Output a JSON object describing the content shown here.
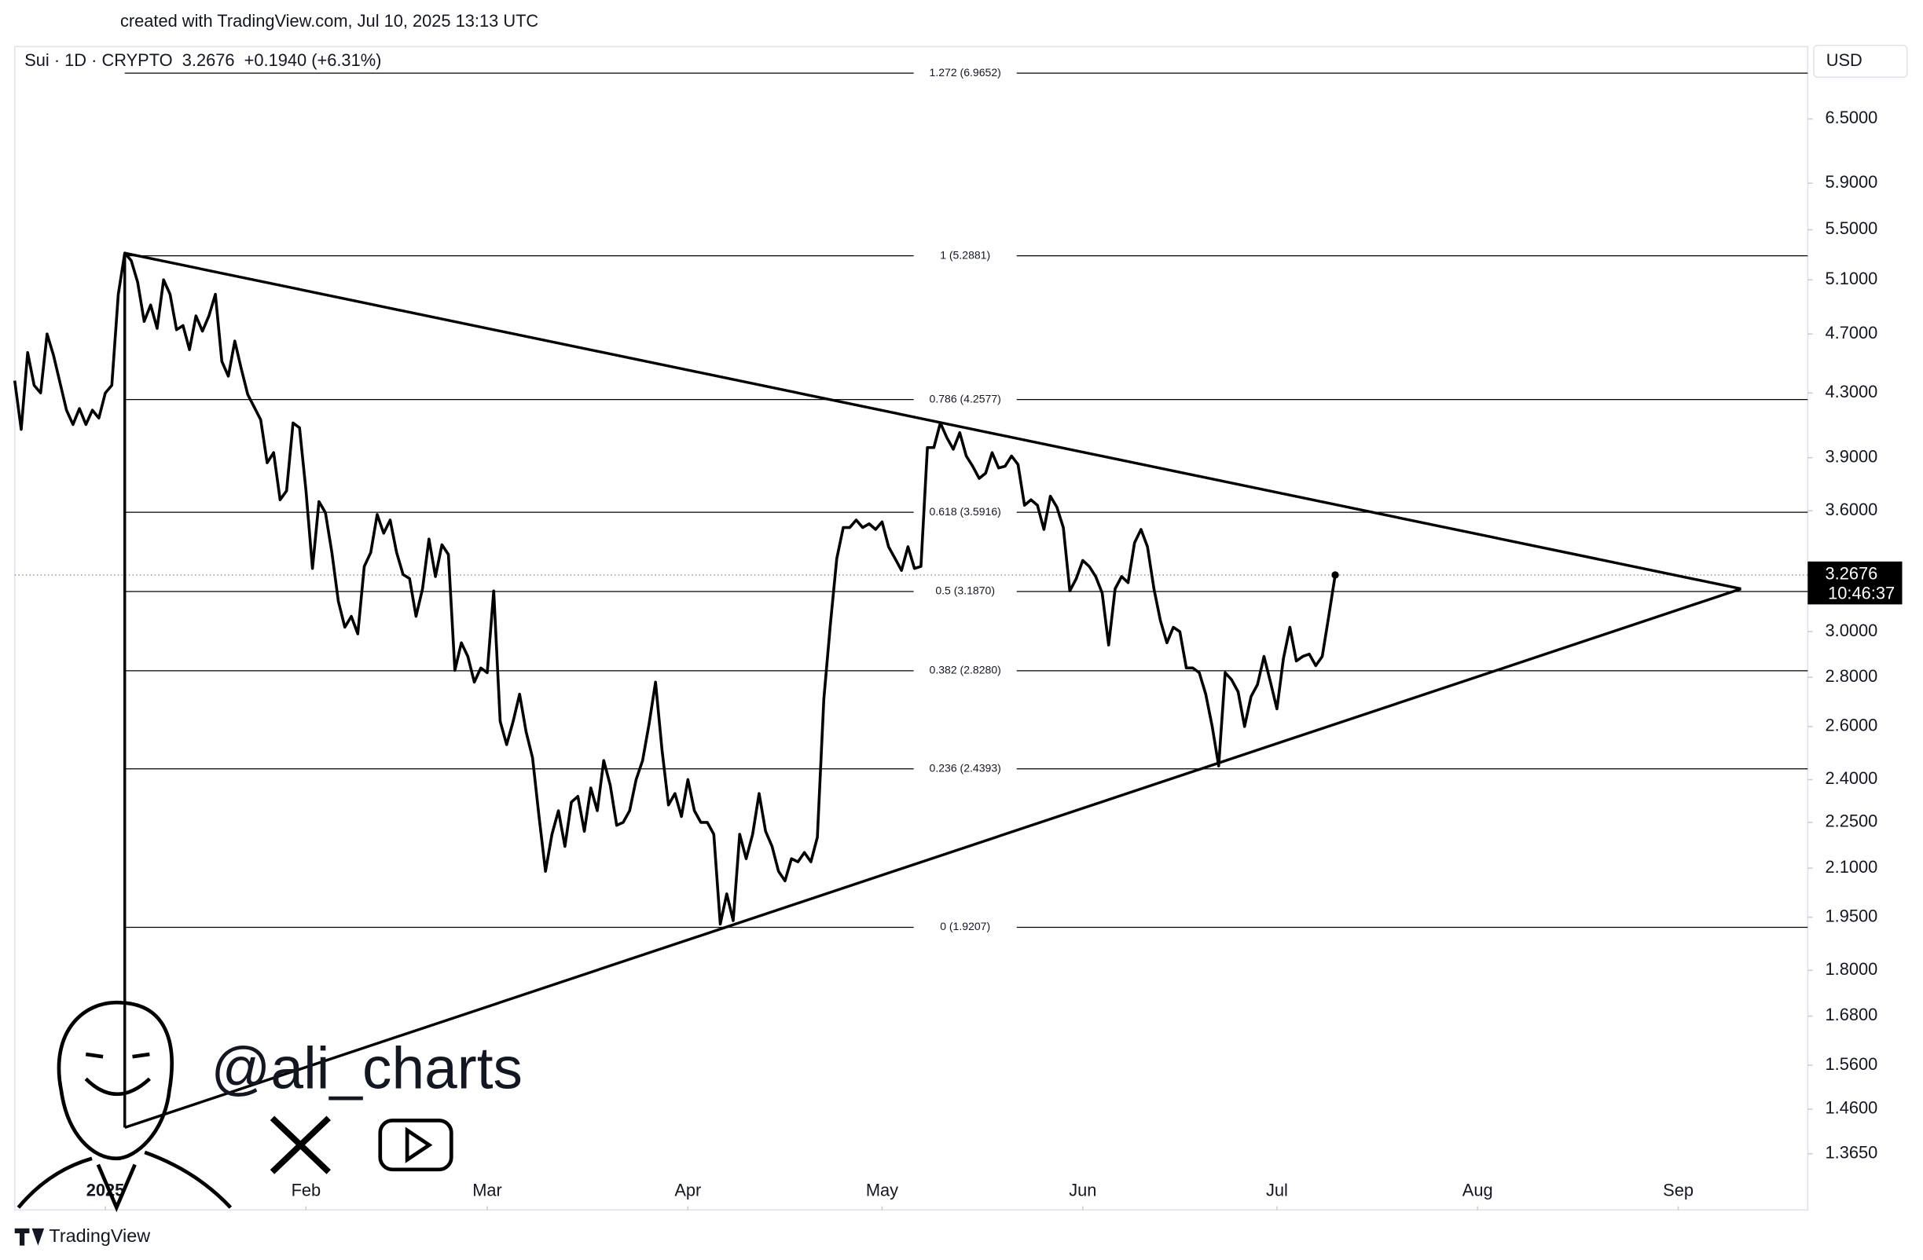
{
  "chart_data": {
    "type": "line",
    "title": "Sui · 1D · CRYPTO  3.2676  +0.1940 (+6.31%)",
    "credit": "created with TradingView.com, Jul 10, 2025 13:13 UTC",
    "currency": "USD",
    "watermark": "@ali_charts",
    "brand": "TradingView",
    "price": 3.2676,
    "countdown": "10:46:37",
    "log_scale": true,
    "color": "#000000",
    "xlim": [
      -14,
      263
    ],
    "ylim": [
      1.254,
      7.25
    ],
    "xticks": [
      {
        "value": 0,
        "label": "2025"
      },
      {
        "value": 31,
        "label": "Feb"
      },
      {
        "value": 59,
        "label": "Mar"
      },
      {
        "value": 90,
        "label": "Apr"
      },
      {
        "value": 120,
        "label": "May"
      },
      {
        "value": 151,
        "label": "Jun"
      },
      {
        "value": 181,
        "label": "Jul"
      },
      {
        "value": 212,
        "label": "Aug"
      },
      {
        "value": 243,
        "label": "Sep"
      }
    ],
    "yticks": [
      {
        "value": 6.5,
        "label": "6.5000"
      },
      {
        "value": 5.9,
        "label": "5.9000"
      },
      {
        "value": 5.5,
        "label": "5.5000"
      },
      {
        "value": 5.1,
        "label": "5.1000"
      },
      {
        "value": 4.7,
        "label": "4.7000"
      },
      {
        "value": 4.3,
        "label": "4.3000"
      },
      {
        "value": 3.9,
        "label": "3.9000"
      },
      {
        "value": 3.6,
        "label": "3.6000"
      },
      {
        "value": 3,
        "label": "3.0000"
      },
      {
        "value": 2.8,
        "label": "2.8000"
      },
      {
        "value": 2.6,
        "label": "2.6000"
      },
      {
        "value": 2.4,
        "label": "2.4000"
      },
      {
        "value": 2.25,
        "label": "2.2500"
      },
      {
        "value": 2.1,
        "label": "2.1000"
      },
      {
        "value": 1.95,
        "label": "1.9500"
      },
      {
        "value": 1.8,
        "label": "1.8000"
      },
      {
        "value": 1.68,
        "label": "1.6800"
      },
      {
        "value": 1.56,
        "label": "1.5600"
      },
      {
        "value": 1.46,
        "label": "1.4600"
      },
      {
        "value": 1.365,
        "label": "1.3650"
      }
    ],
    "fib_levels": [
      {
        "value": 6.9652,
        "label": "1.272 (6.9652)"
      },
      {
        "value": 5.2881,
        "label": "1 (5.2881)"
      },
      {
        "value": 4.2577,
        "label": "0.786 (4.2577)"
      },
      {
        "value": 3.5916,
        "label": "0.618 (3.5916)"
      },
      {
        "value": 3.187,
        "label": "0.5 (3.1870)"
      },
      {
        "value": 2.828,
        "label": "0.382 (2.8280)"
      },
      {
        "value": 2.4393,
        "label": "0.236 (2.4393)"
      },
      {
        "value": 1.9207,
        "label": "0 (1.9207)"
      }
    ],
    "trendlines": [
      {
        "x": [
          3,
          252.7
        ],
        "y": [
          5.31,
          3.2
        ]
      },
      {
        "x": [
          3,
          252.7
        ],
        "y": [
          1.42,
          3.2
        ]
      },
      {
        "x": [
          3,
          3
        ],
        "y": [
          5.31,
          1.42
        ]
      }
    ],
    "x": [
      -14,
      -13,
      -12,
      -11,
      -10,
      -9,
      -8,
      -6,
      -5,
      -4,
      -3,
      -2,
      -1,
      0,
      1,
      2,
      3,
      4,
      5,
      6,
      7,
      8,
      9,
      10,
      11,
      12,
      13,
      14,
      15,
      16,
      17,
      18,
      19,
      20,
      21,
      22,
      24,
      25,
      26,
      27,
      28,
      29,
      30,
      31,
      32,
      33,
      34,
      35,
      36,
      37,
      38,
      39,
      40,
      41,
      42,
      43,
      44,
      45,
      46,
      47,
      48,
      49,
      50,
      51,
      52,
      53,
      54,
      55,
      56,
      57,
      58,
      59,
      60,
      61,
      62,
      63,
      64,
      65,
      66,
      67,
      68,
      69,
      70,
      71,
      72,
      73,
      74,
      75,
      76,
      77,
      78,
      79,
      80,
      81,
      82,
      83,
      84,
      85,
      86,
      87,
      88,
      89,
      90,
      91,
      92,
      93,
      94,
      95,
      96,
      97,
      98,
      99,
      100,
      101,
      102,
      103,
      104,
      105,
      106,
      107,
      108,
      109,
      110,
      111,
      112,
      113,
      114,
      115,
      116,
      117,
      118,
      119,
      120,
      121,
      122,
      123,
      124,
      125,
      126,
      127,
      128,
      129,
      130,
      131,
      132,
      133,
      134,
      135,
      136,
      137,
      138,
      139,
      140,
      141,
      142,
      143,
      144,
      145,
      146,
      147,
      148,
      149,
      150,
      151,
      152,
      153,
      154,
      155,
      156,
      157,
      158,
      159,
      160,
      161,
      162,
      163,
      164,
      165,
      166,
      167,
      168,
      169,
      170,
      171,
      172,
      173,
      174,
      175,
      176,
      177,
      178,
      179,
      180,
      181,
      182,
      183,
      184,
      185,
      186,
      187,
      188,
      189,
      190
    ],
    "values": [
      4.38,
      4.07,
      4.57,
      4.35,
      4.3,
      4.7,
      4.55,
      4.19,
      4.1,
      4.2,
      4.1,
      4.19,
      4.14,
      4.3,
      4.35,
      4.99,
      5.31,
      5.25,
      5.08,
      4.79,
      4.91,
      4.74,
      5.1,
      4.99,
      4.73,
      4.76,
      4.59,
      4.83,
      4.72,
      4.83,
      4.99,
      4.51,
      4.41,
      4.65,
      4.46,
      4.29,
      4.13,
      3.87,
      3.93,
      3.66,
      3.71,
      4.11,
      4.08,
      3.71,
      3.3,
      3.65,
      3.59,
      3.38,
      3.14,
      3.02,
      3.07,
      2.99,
      3.31,
      3.38,
      3.58,
      3.48,
      3.55,
      3.38,
      3.27,
      3.25,
      3.07,
      3.2,
      3.45,
      3.26,
      3.42,
      3.37,
      2.83,
      2.95,
      2.89,
      2.78,
      2.84,
      2.82,
      3.19,
      2.62,
      2.53,
      2.62,
      2.73,
      2.58,
      2.48,
      2.27,
      2.09,
      2.21,
      2.29,
      2.17,
      2.32,
      2.34,
      2.22,
      2.37,
      2.29,
      2.47,
      2.38,
      2.24,
      2.25,
      2.29,
      2.4,
      2.47,
      2.61,
      2.78,
      2.51,
      2.31,
      2.35,
      2.27,
      2.4,
      2.29,
      2.25,
      2.25,
      2.21,
      1.93,
      2.02,
      1.94,
      2.21,
      2.13,
      2.21,
      2.35,
      2.22,
      2.17,
      2.09,
      2.06,
      2.13,
      2.12,
      2.15,
      2.12,
      2.2,
      2.71,
      3.03,
      3.35,
      3.51,
      3.51,
      3.55,
      3.51,
      3.53,
      3.5,
      3.54,
      3.41,
      3.35,
      3.29,
      3.41,
      3.3,
      3.31,
      3.96,
      3.96,
      4.11,
      4.02,
      3.95,
      4.05,
      3.91,
      3.85,
      3.78,
      3.81,
      3.93,
      3.84,
      3.85,
      3.91,
      3.86,
      3.63,
      3.66,
      3.63,
      3.5,
      3.68,
      3.62,
      3.51,
      3.19,
      3.25,
      3.34,
      3.31,
      3.26,
      3.18,
      2.94,
      3.2,
      3.26,
      3.23,
      3.43,
      3.5,
      3.41,
      3.2,
      3.05,
      2.95,
      3.02,
      3,
      2.84,
      2.84,
      2.82,
      2.73,
      2.6,
      2.45,
      2.82,
      2.79,
      2.74,
      2.6,
      2.72,
      2.77,
      2.89,
      2.78,
      2.67,
      2.88,
      3.02,
      2.87,
      2.89,
      2.9,
      2.85,
      2.89,
      3.07,
      3.2676
    ]
  }
}
